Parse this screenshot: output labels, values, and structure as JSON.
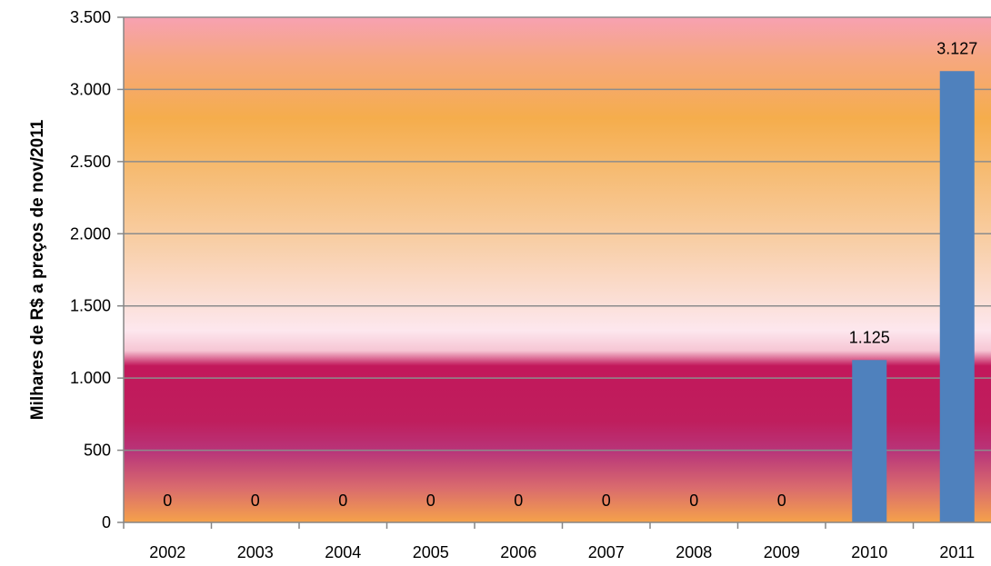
{
  "chart_data": {
    "type": "bar",
    "categories": [
      "2002",
      "2003",
      "2004",
      "2005",
      "2006",
      "2007",
      "2008",
      "2009",
      "2010",
      "2011"
    ],
    "values": [
      0,
      0,
      0,
      0,
      0,
      0,
      0,
      0,
      1125,
      3127
    ],
    "data_labels": [
      "0",
      "0",
      "0",
      "0",
      "0",
      "0",
      "0",
      "0",
      "1.125",
      "3.127"
    ],
    "ylabel": "Milhares de R$ a preços de nov/2011",
    "xlabel": "",
    "title": "",
    "ylim": [
      0,
      3500
    ],
    "yticks": [
      0,
      500,
      1000,
      1500,
      2000,
      2500,
      3000,
      3500
    ],
    "ytick_labels": [
      "0",
      "500",
      "1.000",
      "1.500",
      "2.000",
      "2.500",
      "3.000",
      "3.500"
    ],
    "grid": true,
    "legend": "none",
    "bar_color": "#4f81bd",
    "gridline_color": "#8c8c8c",
    "background_gradient": [
      "#f7a1b2",
      "#f5ad4c",
      "#f8d6c4",
      "#fde7ee",
      "#c2185b",
      "#b8357a",
      "#f5a24a"
    ]
  }
}
